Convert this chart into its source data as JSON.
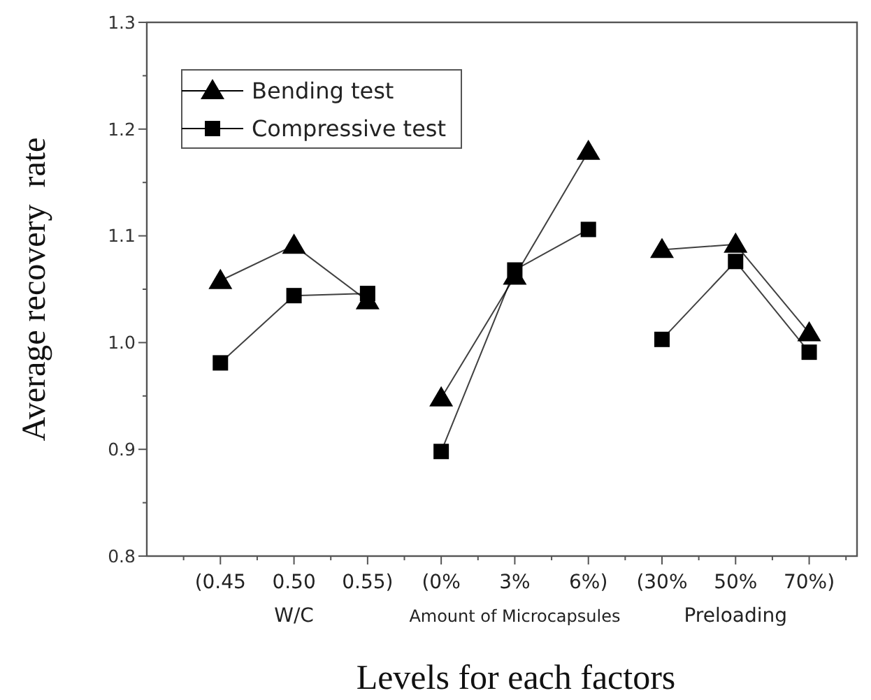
{
  "chart_data": {
    "type": "line",
    "xlabel": "Levels for each factors",
    "ylabel": "Average recovery  rate",
    "categories": [
      "(0.45",
      "0.50",
      "0.55)",
      "(0%",
      "3%",
      "6%)",
      "(30%",
      "50%",
      "70%)"
    ],
    "series": [
      {
        "name": "Bending test",
        "color": "#000000",
        "marker": "triangle",
        "values": [
          1.058,
          1.091,
          1.039,
          null,
          null,
          null,
          null,
          null,
          null
        ]
      },
      {
        "name": "Compressive test",
        "color": "#000000",
        "marker": "square",
        "values": [
          0.981,
          1.044,
          1.046,
          null,
          null,
          null,
          null,
          null,
          null
        ]
      },
      {
        "color": "#000000",
        "marker": "triangle",
        "values": [
          null,
          null,
          null,
          0.948,
          1.062,
          1.179,
          null,
          null,
          null
        ]
      },
      {
        "color": "#000000",
        "marker": "square",
        "values": [
          null,
          null,
          null,
          0.898,
          1.068,
          1.106,
          null,
          null,
          null
        ]
      },
      {
        "color": "#000000",
        "marker": "triangle",
        "values": [
          null,
          null,
          null,
          null,
          null,
          null,
          1.087,
          1.092,
          1.009
        ]
      },
      {
        "color": "#000000",
        "marker": "square",
        "values": [
          null,
          null,
          null,
          null,
          null,
          null,
          1.003,
          1.076,
          0.991
        ]
      }
    ],
    "ylim": [
      0.8,
      1.3
    ],
    "yticks": [
      {
        "value": 0.8,
        "label": "0.8"
      },
      {
        "value": 0.85,
        "label": null
      },
      {
        "value": 0.9,
        "label": "0.9"
      },
      {
        "value": 0.95,
        "label": null
      },
      {
        "value": 1.0,
        "label": "1.0"
      },
      {
        "value": 1.05,
        "label": null
      },
      {
        "value": 1.1,
        "label": "1.1"
      },
      {
        "value": 1.15,
        "label": null
      },
      {
        "value": 1.2,
        "label": "1.2"
      },
      {
        "value": 1.25,
        "label": null
      },
      {
        "value": 1.3,
        "label": "1.3"
      }
    ],
    "annotations": [
      "W/C",
      "Amount of Microcapsules",
      "Preloading"
    ],
    "legend": "top left",
    "grid": false,
    "line_style": "solid"
  }
}
